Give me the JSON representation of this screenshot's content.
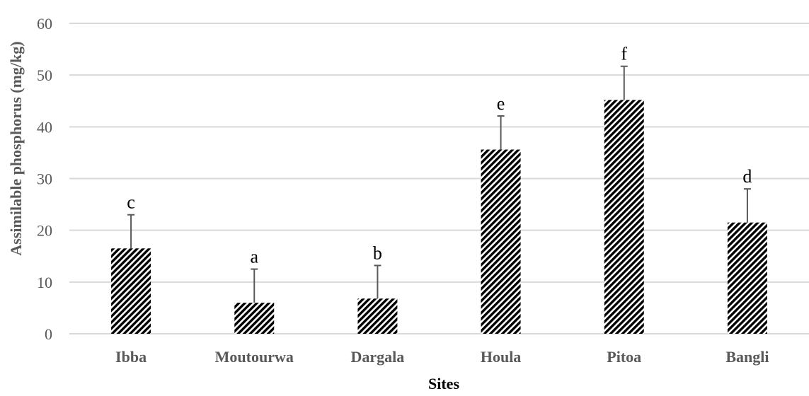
{
  "chart_data": {
    "type": "bar",
    "title": "",
    "xlabel": "Sites",
    "ylabel": "Assimilable phosphorus (mg/kg)",
    "ylim": [
      0,
      60
    ],
    "yticks": [
      0,
      10,
      20,
      30,
      40,
      50,
      60
    ],
    "categories": [
      "Ibba",
      "Moutourwa",
      "Dargala",
      "Houla",
      "Pitoa",
      "Bangli"
    ],
    "values": [
      16.5,
      6.0,
      6.8,
      35.6,
      45.2,
      21.5
    ],
    "error_plus": [
      6.5,
      6.5,
      6.4,
      6.5,
      6.5,
      6.5
    ],
    "significance_letters": [
      "c",
      "a",
      "b",
      "e",
      "f",
      "d"
    ],
    "grid": true,
    "legend": "none",
    "colors": {
      "bar_fill": "#000000",
      "bar_hatch_bg": "#ffffff",
      "error_bar": "#595959",
      "gridline": "#d9d9d9",
      "text": "#595959"
    }
  }
}
